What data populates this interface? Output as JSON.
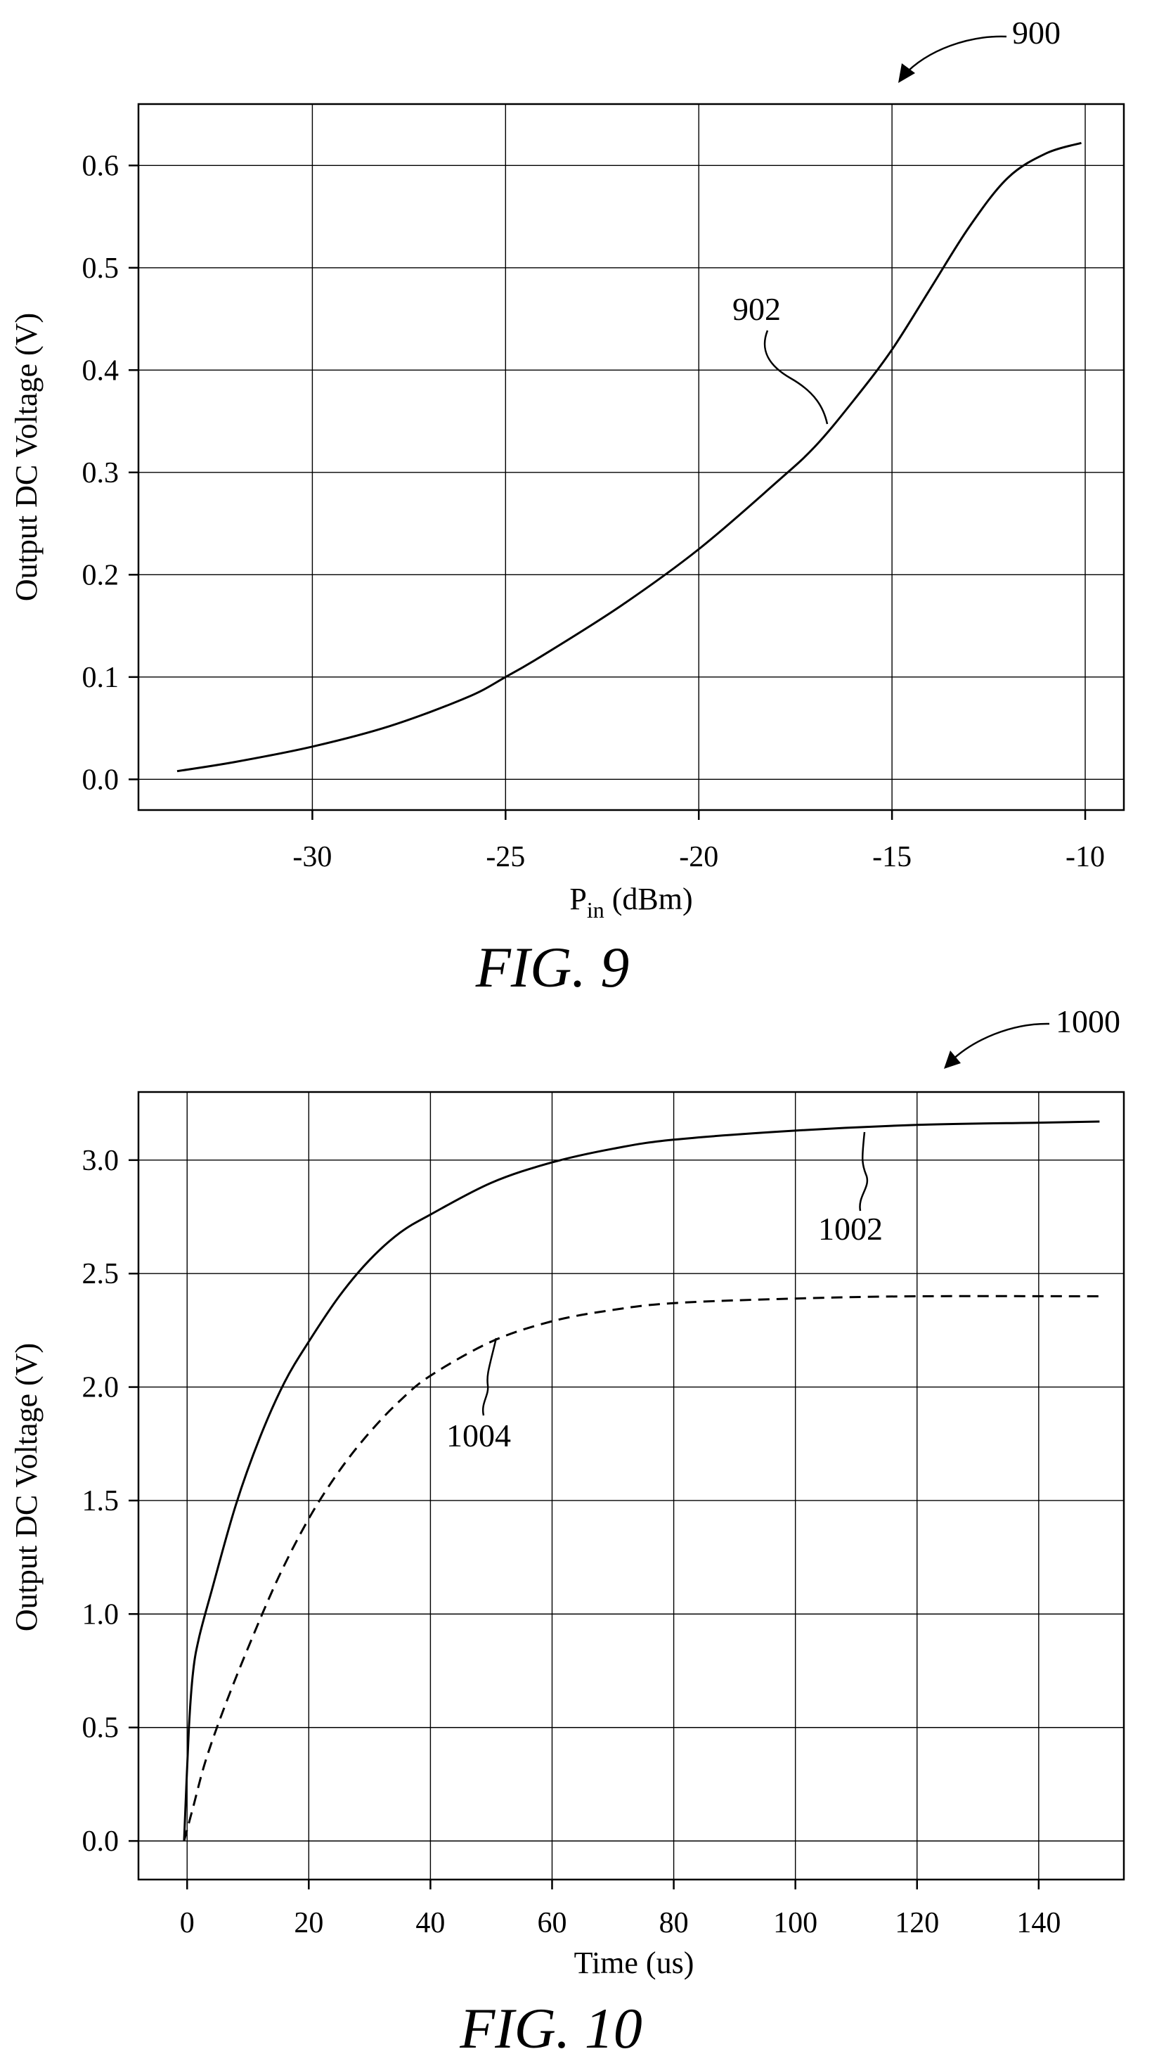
{
  "figures": [
    {
      "caption": "FIG. 9",
      "reference": "900",
      "ylabel": "Output DC Voltage (V)",
      "xlabel_main": "P",
      "xlabel_sub": "in",
      "xlabel_rest": " (dBm)",
      "curve_refs": [
        "902"
      ]
    },
    {
      "caption": "FIG. 10",
      "reference": "1000",
      "ylabel": "Output DC Voltage (V)",
      "xlabel": "Time (us)",
      "curve_refs": [
        "1002",
        "1004"
      ]
    }
  ],
  "chart_data": [
    {
      "type": "line",
      "xlabel": "Pin (dBm)",
      "ylabel": "Output DC Voltage (V)",
      "xlim": [
        -34.5,
        -9
      ],
      "ylim": [
        -0.03,
        0.66
      ],
      "xticks": [
        -30,
        -25,
        -20,
        -15,
        -10
      ],
      "xtick_labels": [
        "-30",
        "-25",
        "-20",
        "-15",
        "-10"
      ],
      "yticks": [
        0.0,
        0.1,
        0.2,
        0.3,
        0.4,
        0.5,
        0.6
      ],
      "ytick_labels": [
        "0.0",
        "0.1",
        "0.2",
        "0.3",
        "0.4",
        "0.5",
        "0.6"
      ],
      "grid": true,
      "series": [
        {
          "label": "902",
          "style": "solid",
          "x": [
            -33.5,
            -32,
            -30,
            -28,
            -26,
            -25,
            -24,
            -22,
            -20,
            -18,
            -17,
            -16,
            -15,
            -14,
            -13,
            -12,
            -11,
            -10.1
          ],
          "y": [
            0.008,
            0.017,
            0.032,
            0.052,
            0.08,
            0.1,
            0.122,
            0.17,
            0.225,
            0.29,
            0.325,
            0.37,
            0.42,
            0.48,
            0.54,
            0.588,
            0.612,
            0.622
          ]
        }
      ]
    },
    {
      "type": "line",
      "xlabel": "Time (us)",
      "ylabel": "Output DC Voltage (V)",
      "xlim": [
        -8,
        154
      ],
      "ylim": [
        -0.17,
        3.3
      ],
      "xticks": [
        0,
        20,
        40,
        60,
        80,
        100,
        120,
        140
      ],
      "xtick_labels": [
        "0",
        "20",
        "40",
        "60",
        "80",
        "100",
        "120",
        "140"
      ],
      "yticks": [
        0.0,
        0.5,
        1.0,
        1.5,
        2.0,
        2.5,
        3.0
      ],
      "ytick_labels": [
        "0.0",
        "0.5",
        "1.0",
        "1.5",
        "2.0",
        "2.5",
        "3.0"
      ],
      "grid": true,
      "series": [
        {
          "label": "1002",
          "style": "solid",
          "x": [
            -0.5,
            0.3,
            1,
            2,
            4,
            8,
            12,
            16,
            20,
            25,
            30,
            35,
            40,
            50,
            60,
            70,
            80,
            100,
            120,
            140,
            150
          ],
          "y": [
            0.0,
            0.5,
            0.75,
            0.9,
            1.1,
            1.48,
            1.78,
            2.02,
            2.2,
            2.4,
            2.56,
            2.68,
            2.76,
            2.9,
            2.99,
            3.05,
            3.09,
            3.13,
            3.155,
            3.165,
            3.17
          ]
        },
        {
          "label": "1004",
          "style": "dashed",
          "x": [
            -0.5,
            1,
            3,
            6,
            10,
            15,
            20,
            25,
            30,
            35,
            40,
            50,
            60,
            70,
            80,
            100,
            120,
            150
          ],
          "y": [
            0.0,
            0.15,
            0.35,
            0.58,
            0.85,
            1.16,
            1.42,
            1.63,
            1.8,
            1.94,
            2.05,
            2.2,
            2.29,
            2.34,
            2.37,
            2.39,
            2.4,
            2.4
          ]
        }
      ]
    }
  ]
}
